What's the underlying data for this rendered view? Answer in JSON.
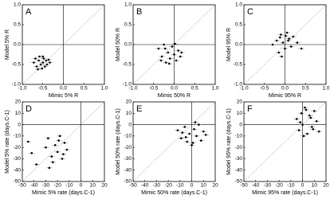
{
  "chart_data": [
    {
      "type": "scatter",
      "label": "A",
      "xlabel": "Mimic 5% R",
      "ylabel": "Model 5% R",
      "color": "#000000",
      "xlim": [
        -1,
        1
      ],
      "ylim": [
        -1,
        1
      ],
      "xticks": [
        {
          "value": -1,
          "label": "-1.0"
        },
        {
          "value": -0.5,
          "label": "-0.5"
        },
        {
          "value": 0,
          "label": "0.0"
        },
        {
          "value": 0.5,
          "label": "0.5"
        },
        {
          "value": 1,
          "label": "1.0"
        }
      ],
      "yticks": [
        {
          "value": -1,
          "label": "-1.0"
        },
        {
          "value": -0.5,
          "label": "-0.5"
        },
        {
          "value": 0,
          "label": "0.0"
        },
        {
          "value": 0.5,
          "label": "0.5"
        },
        {
          "value": 1,
          "label": "1.0"
        }
      ],
      "x": [
        -0.72,
        -0.68,
        -0.65,
        -0.6,
        -0.58,
        -0.55,
        -0.52,
        -0.5,
        -0.48,
        -0.45,
        -0.42,
        -0.4,
        -0.36,
        -0.33,
        -0.62,
        -0.5
      ],
      "y": [
        -0.45,
        -0.35,
        -0.55,
        -0.4,
        -0.3,
        -0.5,
        -0.6,
        -0.45,
        -0.35,
        -0.55,
        -0.4,
        -0.5,
        -0.38,
        -0.45,
        -0.62,
        -0.3
      ]
    },
    {
      "type": "scatter",
      "label": "B",
      "xlabel": "Mimic 50% R",
      "ylabel": "Model 50% R",
      "color": "#000000",
      "xlim": [
        -1,
        1
      ],
      "ylim": [
        -1,
        1
      ],
      "xticks": [
        {
          "value": -1,
          "label": "-1.0"
        },
        {
          "value": -0.5,
          "label": "-0.5"
        },
        {
          "value": 0,
          "label": "0.0"
        },
        {
          "value": 0.5,
          "label": "0.5"
        },
        {
          "value": 1,
          "label": "1.0"
        }
      ],
      "yticks": [
        {
          "value": -1,
          "label": "-1.0"
        },
        {
          "value": -0.5,
          "label": "-0.5"
        },
        {
          "value": 0,
          "label": "0.0"
        },
        {
          "value": 0.5,
          "label": "0.5"
        },
        {
          "value": 1,
          "label": "1.0"
        }
      ],
      "x": [
        -0.38,
        -0.3,
        -0.25,
        -0.2,
        -0.15,
        -0.1,
        -0.05,
        0,
        0.05,
        0.1,
        0.15,
        -0.22,
        -0.12,
        0.02,
        -0.32,
        0.18
      ],
      "y": [
        -0.1,
        -0.3,
        0,
        -0.45,
        -0.2,
        -0.35,
        -0.05,
        -0.25,
        -0.4,
        -0.15,
        -0.3,
        -0.1,
        -0.48,
        0.02,
        -0.4,
        -0.2
      ]
    },
    {
      "type": "scatter",
      "label": "C",
      "xlabel": "Mimic 95% R",
      "ylabel": "Model 95% R",
      "color": "#000000",
      "xlim": [
        -1,
        1
      ],
      "ylim": [
        -1,
        1
      ],
      "xticks": [
        {
          "value": -1,
          "label": "-1.0"
        },
        {
          "value": -0.5,
          "label": "-0.5"
        },
        {
          "value": 0,
          "label": "0.0"
        },
        {
          "value": 0.5,
          "label": "0.5"
        },
        {
          "value": 1,
          "label": "1.0"
        }
      ],
      "yticks": [
        {
          "value": -1,
          "label": "-1.0"
        },
        {
          "value": -0.5,
          "label": "-0.5"
        },
        {
          "value": 0,
          "label": "0.0"
        },
        {
          "value": 0.5,
          "label": "0.5"
        },
        {
          "value": 1,
          "label": "1.0"
        }
      ],
      "x": [
        -0.3,
        -0.2,
        -0.15,
        -0.1,
        -0.05,
        0,
        0.05,
        0.1,
        0.15,
        0.2,
        0.3,
        0.4,
        -0.08,
        0.08,
        0.02,
        -0.12
      ],
      "y": [
        0,
        0.1,
        -0.2,
        0.25,
        0.05,
        -0.1,
        0.3,
        0.15,
        -0.05,
        0.2,
        0.05,
        -0.1,
        -0.3,
        0.1,
        0.22,
        0.18
      ]
    },
    {
      "type": "scatter",
      "label": "D",
      "xlabel": "Mimic 5% rate (days.C-1)",
      "ylabel": "Model 5% rate (days.C-1)",
      "color": "#000000",
      "xlim": [
        -50,
        20
      ],
      "ylim": [
        -50,
        20
      ],
      "xticks": [
        -50,
        -40,
        -30,
        -20,
        -10,
        0,
        10,
        20
      ],
      "yticks": [
        -50,
        -40,
        -30,
        -20,
        -10,
        0,
        10,
        20
      ],
      "x": [
        -45,
        -42,
        -38,
        -30,
        -28,
        -25,
        -22,
        -20,
        -18,
        -16,
        -14,
        -12,
        -24,
        -19,
        -27,
        -15
      ],
      "y": [
        -15,
        -25,
        -35,
        -20,
        -12,
        -28,
        -18,
        -24,
        -10,
        -30,
        -16,
        -22,
        -33,
        -14,
        -38,
        -26
      ]
    },
    {
      "type": "scatter",
      "label": "E",
      "xlabel": "Mimic 50% rate (days.C-1)",
      "ylabel": "Model 50% rate (days.C-1)",
      "color": "#000000",
      "xlim": [
        -50,
        20
      ],
      "ylim": [
        -50,
        20
      ],
      "xticks": [
        -50,
        -40,
        -30,
        -20,
        -10,
        0,
        10,
        20
      ],
      "yticks": [
        -50,
        -40,
        -30,
        -20,
        -10,
        0,
        10,
        20
      ],
      "x": [
        -12,
        -9,
        -6,
        -4,
        -2,
        0,
        2,
        4,
        6,
        8,
        10,
        12,
        -5,
        3,
        1,
        -8
      ],
      "y": [
        -5,
        -12,
        -2,
        -15,
        -8,
        -18,
        -4,
        -10,
        0,
        -14,
        -6,
        -9,
        -11,
        2,
        -16,
        -7
      ]
    },
    {
      "type": "scatter",
      "label": "F",
      "xlabel": "Mimic 95% rate (days.C-1)",
      "ylabel": "Model 95% rate (days.C-1)",
      "color": "#000000",
      "xlim": [
        -50,
        20
      ],
      "ylim": [
        -50,
        20
      ],
      "xticks": [
        -50,
        -40,
        -30,
        -20,
        -10,
        0,
        10,
        20
      ],
      "yticks": [
        -50,
        -40,
        -30,
        -20,
        -10,
        0,
        10,
        20
      ],
      "x": [
        -5,
        -3,
        -1,
        0,
        2,
        4,
        6,
        8,
        10,
        12,
        14,
        1,
        3,
        7,
        -2,
        9
      ],
      "y": [
        5,
        -5,
        10,
        0,
        15,
        -8,
        8,
        -2,
        12,
        3,
        -6,
        -10,
        13,
        6,
        2,
        -4
      ]
    }
  ]
}
